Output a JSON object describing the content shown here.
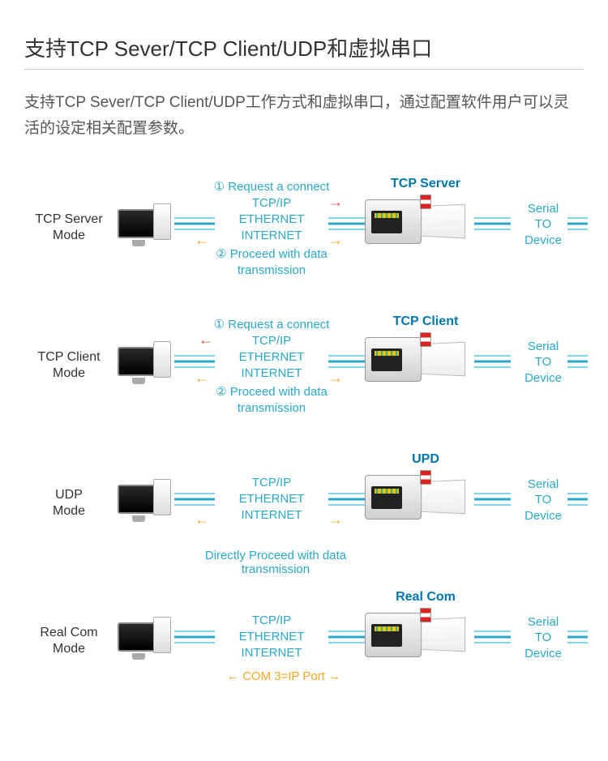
{
  "title": "支持TCP Sever/TCP Client/UDP和虚拟串口",
  "desc": "支持TCP Sever/TCP Client/UDP工作方式和虚拟串口，通过配置软件用户可以灵活的设定相关配置参数。",
  "colors": {
    "text_main": "#333333",
    "text_body": "#555555",
    "cyan": "#2aa8c9",
    "cyan_light": "#7fd4e8",
    "device_title": "#0077aa",
    "orange": "#f5a623",
    "red": "#e74c3c",
    "underline": "#cccccc",
    "bg": "#ffffff"
  },
  "common": {
    "stack": [
      "TCP/IP",
      "ETHERNET",
      "INTERNET"
    ],
    "serial": [
      "Serial",
      "TO",
      "Device"
    ],
    "req": "① Request a connect",
    "proceed": "② Proceed with data transmission"
  },
  "modes": [
    {
      "label_l1": "TCP Server",
      "label_l2": "Mode",
      "device_title": "TCP Server",
      "show_req": true,
      "show_proceed": true,
      "arrows": "standard",
      "foot": null
    },
    {
      "label_l1": "TCP Client",
      "label_l2": "Mode",
      "device_title": "TCP Client",
      "show_req": true,
      "show_proceed": true,
      "arrows": "client",
      "foot": null
    },
    {
      "label_l1": "UDP",
      "label_l2": "Mode",
      "device_title": "UPD",
      "show_req": false,
      "show_proceed": false,
      "arrows": "udp",
      "foot": "Directly Proceed with data transmission"
    },
    {
      "label_l1": "Real Com",
      "label_l2": "Mode",
      "device_title": "Real Com",
      "show_req": false,
      "show_proceed": false,
      "arrows": "realcom",
      "foot": null,
      "com_text": "COM 3=IP Port"
    }
  ]
}
